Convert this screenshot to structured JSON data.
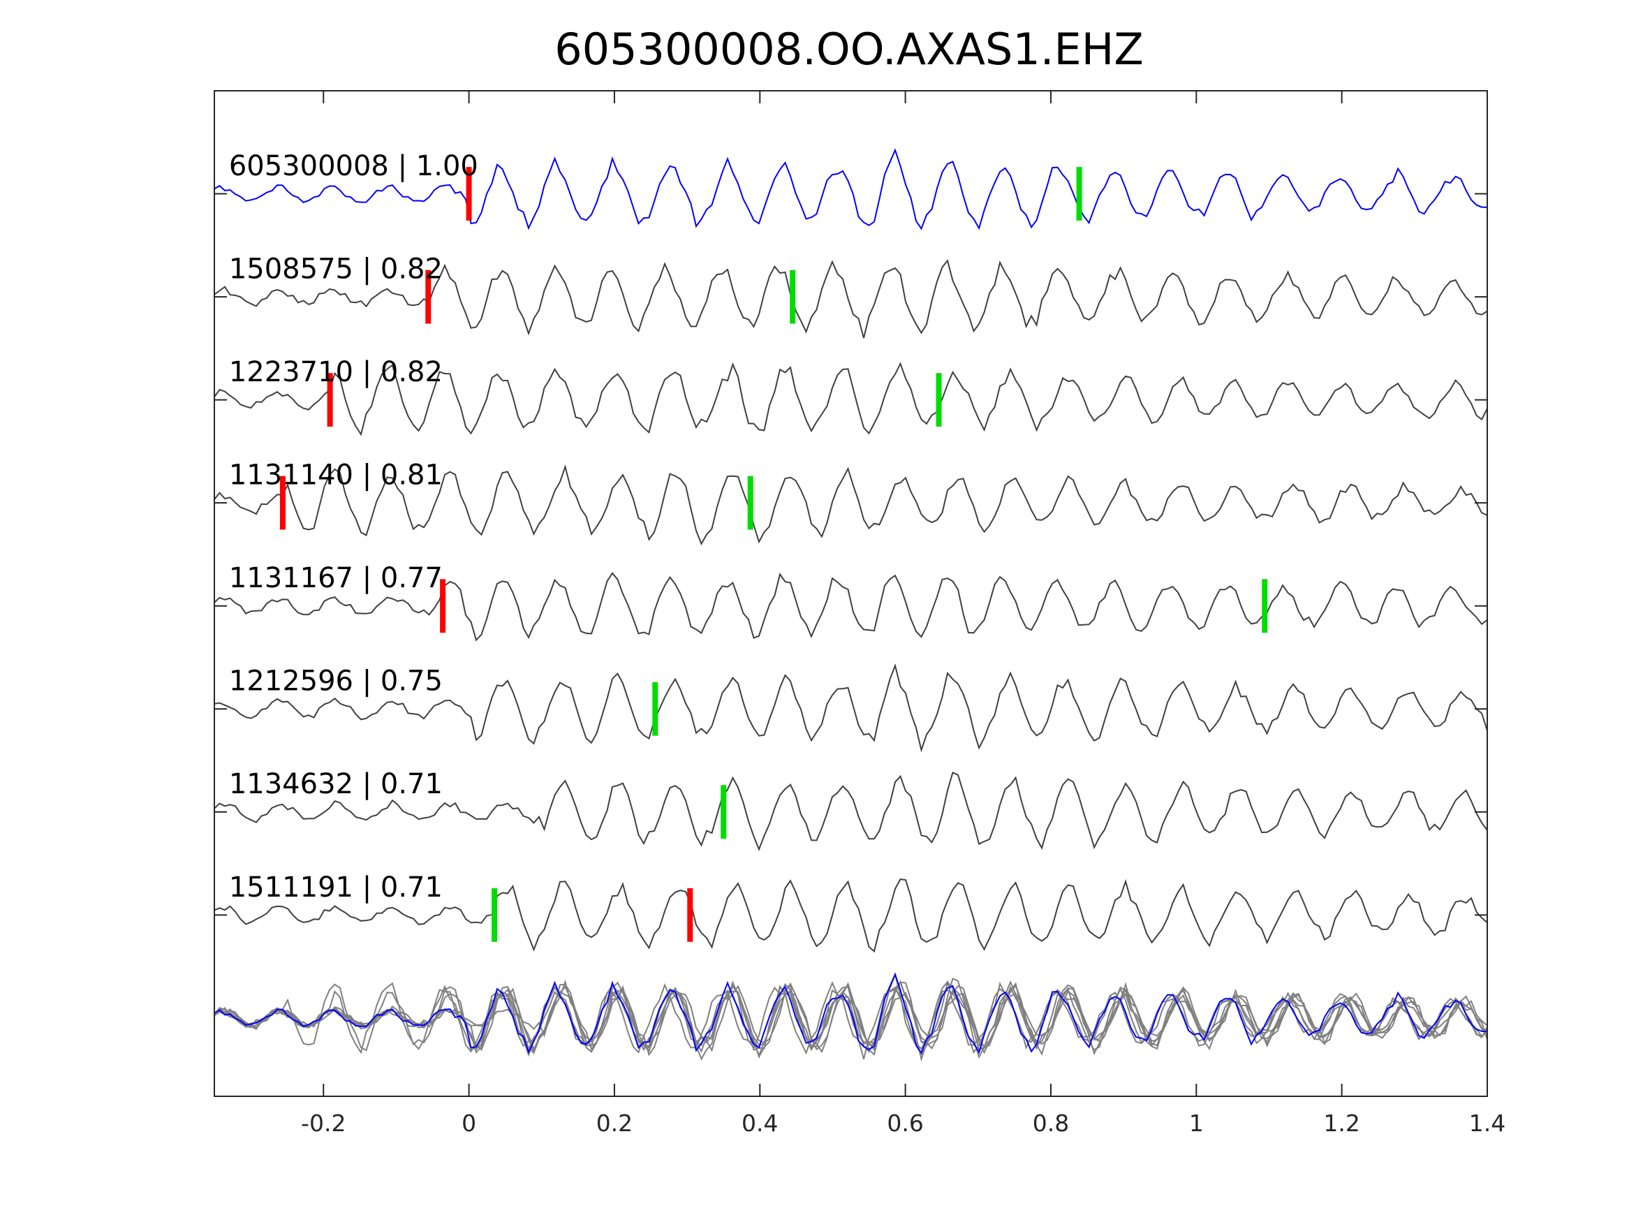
{
  "chart_data": {
    "type": "line",
    "title": "605300008.OO.AXAS1.EHZ",
    "xlabel": "",
    "ylabel": "",
    "xlim": [
      -0.35,
      1.4
    ],
    "ylim": [
      -8.76,
      1.0
    ],
    "xticks": [
      -0.2,
      0,
      0.2,
      0.4,
      0.6,
      0.8,
      1,
      1.2,
      1.4
    ],
    "xtick_labels": [
      "-0.2",
      "0",
      "0.2",
      "0.4",
      "0.6",
      "0.8",
      "1",
      "1.2",
      "1.4"
    ],
    "grid": false,
    "colors": {
      "template": "#0000ff",
      "trace": "#404040",
      "stack": "#808080",
      "p_pick": "#ff0000",
      "s_pick": "#00dd00",
      "axis": "#262626"
    },
    "traces": [
      {
        "id": "605300008",
        "cc": "1.00",
        "label": "605300008 | 1.00",
        "offset": 0,
        "red_pick": 0.0,
        "green_pick": 0.839,
        "template": true,
        "seed": 11
      },
      {
        "id": "1508575",
        "cc": "0.82",
        "label": "1508575 | 0.82",
        "offset": -1,
        "red_pick": -0.056,
        "green_pick": 0.445,
        "seed": 23
      },
      {
        "id": "1223710",
        "cc": "0.82",
        "label": "1223710 | 0.82",
        "offset": -2,
        "red_pick": -0.191,
        "green_pick": 0.646,
        "seed": 37
      },
      {
        "id": "1131140",
        "cc": "0.81",
        "label": "1131140 | 0.81",
        "offset": -3,
        "red_pick": -0.256,
        "green_pick": 0.387,
        "seed": 41
      },
      {
        "id": "1131167",
        "cc": "0.77",
        "label": "1131167 | 0.77",
        "offset": -4,
        "red_pick": -0.036,
        "green_pick": 1.094,
        "seed": 53
      },
      {
        "id": "1212596",
        "cc": "0.75",
        "label": "1212596 | 0.75",
        "offset": -5,
        "red_pick": null,
        "green_pick": 0.256,
        "seed": 67
      },
      {
        "id": "1134632",
        "cc": "0.71",
        "label": "1134632 | 0.71",
        "offset": -6,
        "red_pick": null,
        "green_pick": 0.35,
        "seed": 71
      },
      {
        "id": "1511191",
        "cc": "0.71",
        "label": "1511191 | 0.71",
        "offset": -7,
        "red_pick": 0.304,
        "green_pick": 0.035,
        "seed": 89
      }
    ],
    "stack_offset": -8,
    "sample_interval": 0.0072,
    "amplitude": 0.36
  }
}
